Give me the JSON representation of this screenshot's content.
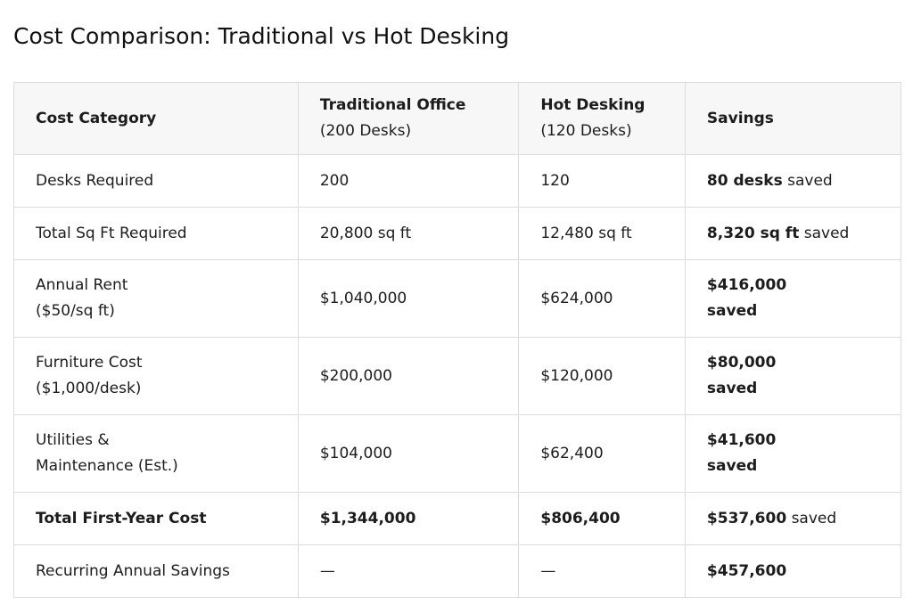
{
  "title": "Cost Comparison: Traditional vs Hot Desking",
  "table": {
    "header": [
      {
        "title": "Cost Category"
      },
      {
        "title": "Traditional Office",
        "sub": "(200 Desks)"
      },
      {
        "title": "Hot Desking",
        "sub": "(120 Desks)"
      },
      {
        "title": "Savings"
      }
    ],
    "rows": [
      {
        "label": [
          "Desks Required"
        ],
        "traditional": "200",
        "hot": "120",
        "savings": {
          "strong": "80 desks",
          "rest": "saved"
        }
      },
      {
        "label": [
          "Total Sq Ft Required"
        ],
        "traditional": "20,800 sq ft",
        "hot": "12,480 sq ft",
        "savings": {
          "strong": "8,320 sq ft",
          "rest": "saved"
        }
      },
      {
        "label": [
          "Annual Rent",
          "($50/sq ft)"
        ],
        "traditional": "$1,040,000",
        "hot": "$624,000",
        "savings": {
          "strong": "$416,000",
          "rest": "saved"
        }
      },
      {
        "label": [
          "Furniture Cost",
          "($1,000/desk)"
        ],
        "traditional": "$200,000",
        "hot": "$120,000",
        "savings": {
          "strong": "$80,000",
          "rest": "saved"
        }
      },
      {
        "label": [
          "Utilities &",
          "Maintenance (Est.)"
        ],
        "traditional": "$104,000",
        "hot": "$62,400",
        "savings": {
          "strong": "$41,600",
          "rest": "saved"
        }
      },
      {
        "label": [
          "Total First-Year Cost"
        ],
        "traditional": "$1,344,000",
        "hot": "$806,400",
        "savings": {
          "strong": "$537,600",
          "rest": "saved"
        }
      },
      {
        "label": [
          "Recurring Annual Savings"
        ],
        "traditional": "—",
        "hot": "—",
        "savings": {
          "strong": "$457,600"
        }
      }
    ]
  }
}
